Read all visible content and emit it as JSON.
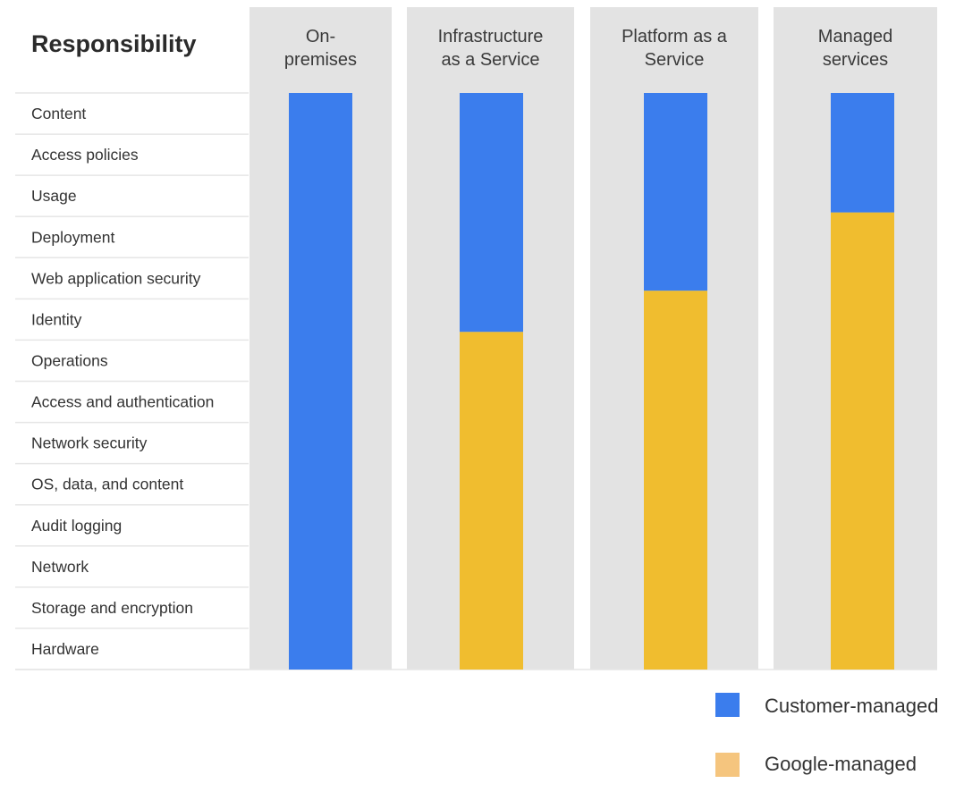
{
  "chart_data": {
    "type": "bar",
    "title": "Responsibility",
    "categories": [
      "On-premises",
      "Infrastructure as a Service",
      "Platform as a Service",
      "Managed services"
    ],
    "category_lines": [
      [
        "On-",
        "premises"
      ],
      [
        "Infrastructure",
        "as a Service"
      ],
      [
        "Platform as a",
        "Service"
      ],
      [
        "Managed",
        "services"
      ]
    ],
    "rows": [
      "Content",
      "Access policies",
      "Usage",
      "Deployment",
      "Web application security",
      "Identity",
      "Operations",
      "Access and authentication",
      "Network security",
      "OS, data, and content",
      "Audit logging",
      "Network",
      "Storage and encryption",
      "Hardware"
    ],
    "series": [
      {
        "name": "Customer-managed",
        "values": [
          14,
          5.8,
          4.8,
          2.9
        ]
      },
      {
        "name": "Google-managed",
        "values": [
          0,
          8.2,
          9.2,
          11.1
        ]
      }
    ],
    "ylim": [
      0,
      14
    ],
    "colors": {
      "Customer-managed": "#3b7ded",
      "Google-managed": "#f0bd2f",
      "legend_google": "#f5c57e",
      "column_bg": "#e3e3e3",
      "row_line": "#e6e6e6"
    },
    "legend": {
      "position": "bottom-right",
      "items": [
        "Customer-managed",
        "Google-managed"
      ]
    }
  }
}
